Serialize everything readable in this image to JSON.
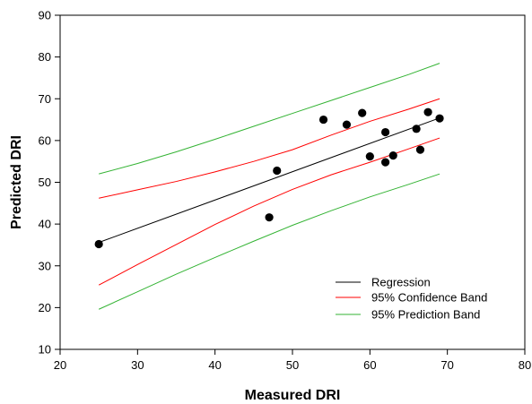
{
  "chart_data": {
    "type": "scatter",
    "xlabel": "Measured DRI",
    "ylabel": "Predicted DRI",
    "xlim": [
      20,
      80
    ],
    "ylim": [
      10,
      90
    ],
    "xticks": [
      20,
      30,
      40,
      50,
      60,
      70,
      80
    ],
    "yticks": [
      10,
      20,
      30,
      40,
      50,
      60,
      70,
      80,
      90
    ],
    "grid": false,
    "legend_position": "bottom-right",
    "points": [
      {
        "x": 25,
        "y": 35.2
      },
      {
        "x": 47,
        "y": 41.6
      },
      {
        "x": 48,
        "y": 52.8
      },
      {
        "x": 54,
        "y": 65.0
      },
      {
        "x": 57,
        "y": 63.8
      },
      {
        "x": 59,
        "y": 66.6
      },
      {
        "x": 60,
        "y": 56.2
      },
      {
        "x": 62,
        "y": 62.0
      },
      {
        "x": 62,
        "y": 54.8
      },
      {
        "x": 63,
        "y": 56.4
      },
      {
        "x": 66,
        "y": 62.8
      },
      {
        "x": 66.5,
        "y": 57.8
      },
      {
        "x": 67.5,
        "y": 66.8
      },
      {
        "x": 69,
        "y": 65.3
      }
    ],
    "series": [
      {
        "name": "Regression",
        "color": "#000000",
        "x": [
          25,
          69
        ],
        "y": [
          35.6,
          65.4
        ]
      },
      {
        "name": "95% Confidence Band",
        "color": "#ff0000",
        "x": [
          25,
          30,
          35,
          40,
          45,
          50,
          55,
          60,
          65,
          69
        ],
        "upper": [
          46.2,
          48.2,
          50.2,
          52.5,
          55.0,
          57.8,
          61.3,
          64.6,
          67.5,
          70.0
        ],
        "lower": [
          25.4,
          30.3,
          35.1,
          39.9,
          44.3,
          48.3,
          51.8,
          54.8,
          58.0,
          60.6
        ]
      },
      {
        "name": "95% Prediction Band",
        "color": "#33b333",
        "x": [
          25,
          30,
          35,
          40,
          45,
          50,
          55,
          60,
          65,
          69
        ],
        "upper": [
          52.0,
          54.5,
          57.3,
          60.3,
          63.4,
          66.5,
          69.6,
          72.7,
          75.8,
          78.5
        ],
        "lower": [
          19.6,
          23.8,
          28.0,
          32.0,
          35.9,
          39.7,
          43.2,
          46.5,
          49.5,
          52.0
        ]
      }
    ]
  }
}
